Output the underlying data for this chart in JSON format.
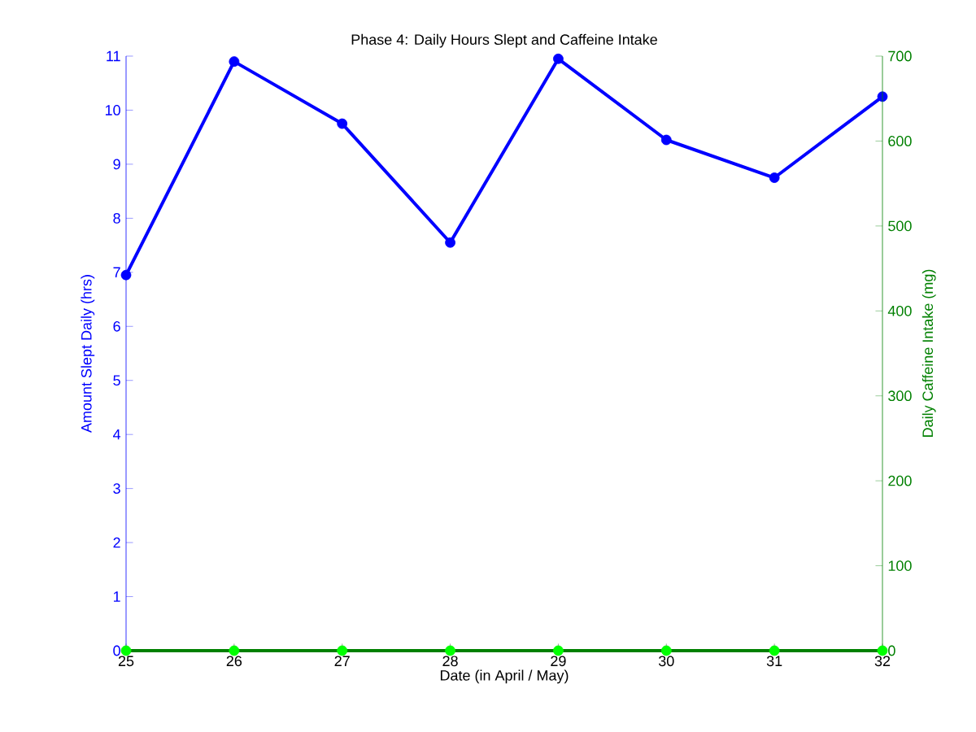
{
  "chart_data": {
    "type": "line",
    "title": "Phase 4: Daily Hours Slept and Caffeine Intake",
    "xlabel": "Date (in April / May)",
    "ylabel": "Amount Slept Daily (hrs)",
    "y2label": "Daily Caffeine Intake (mg)",
    "x": [
      25,
      26,
      27,
      28,
      29,
      30,
      31,
      32
    ],
    "series": [
      {
        "color": "#0000ff",
        "values": [
          6.95,
          10.9,
          9.75,
          7.55,
          10.95,
          9.45,
          8.75,
          10.25
        ]
      },
      {
        "color": "#008000",
        "colors": [
          "#00ff00",
          "#00ff00",
          "#00ff00",
          "#00ff00",
          "#00ff00",
          "#00ff00",
          "#00ff00",
          "#00ff00"
        ],
        "axis": "y2",
        "values": [
          0,
          0,
          0,
          0,
          0,
          0,
          0,
          0
        ]
      }
    ],
    "xlim": [
      25,
      32
    ],
    "xticks": [
      25,
      26,
      27,
      28,
      29,
      30,
      31,
      32
    ],
    "ylim": [
      0,
      11
    ],
    "yticks": [
      0,
      1,
      2,
      3,
      4,
      5,
      6,
      7,
      8,
      9,
      10,
      11
    ],
    "y2lim": [
      0,
      700
    ],
    "y2ticks": [
      0,
      100,
      200,
      300,
      400,
      500,
      600,
      700
    ],
    "marker": "circle",
    "line_style": "solid"
  }
}
